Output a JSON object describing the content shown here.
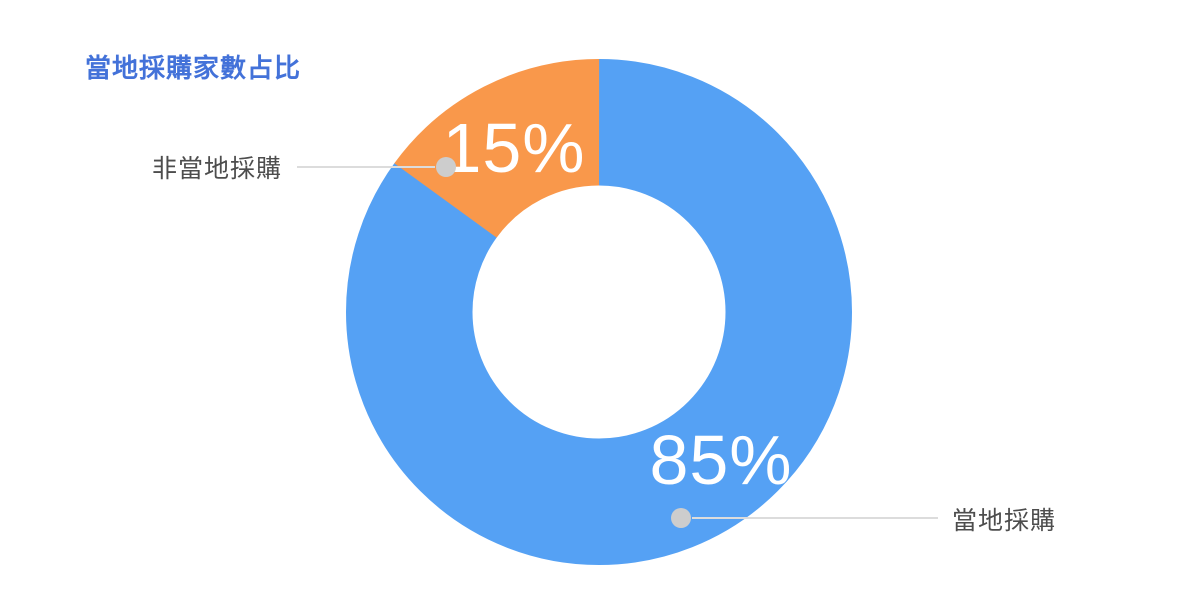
{
  "header": {
    "title": "當地採購家數占比",
    "title_color": "#4372D9"
  },
  "chart_data": {
    "type": "pie",
    "subtype": "donut",
    "title": "當地採購家數占比",
    "categories": [
      "當地採購",
      "非當地採購"
    ],
    "values": [
      85,
      15
    ],
    "value_labels": [
      "85%",
      "15%"
    ],
    "slice_ids": [
      "local-purchase",
      "non-local-purchase"
    ],
    "colors": [
      "#55A1F4",
      "#F9984B"
    ],
    "start_angle_deg": 0,
    "direction": "clockwise",
    "inner_radius_ratio": 0.5,
    "legend_position": "callout-labels",
    "value_label_color": "#FFFFFF"
  },
  "callouts": {
    "non_local": {
      "label": "非當地採購"
    },
    "local": {
      "label": "當地採購"
    }
  },
  "style_colors": {
    "leader_line": "#DCDCDC",
    "leader_dot": "#CDCDCD",
    "callout_text": "#4D4D4D",
    "background": "#FFFFFF"
  }
}
